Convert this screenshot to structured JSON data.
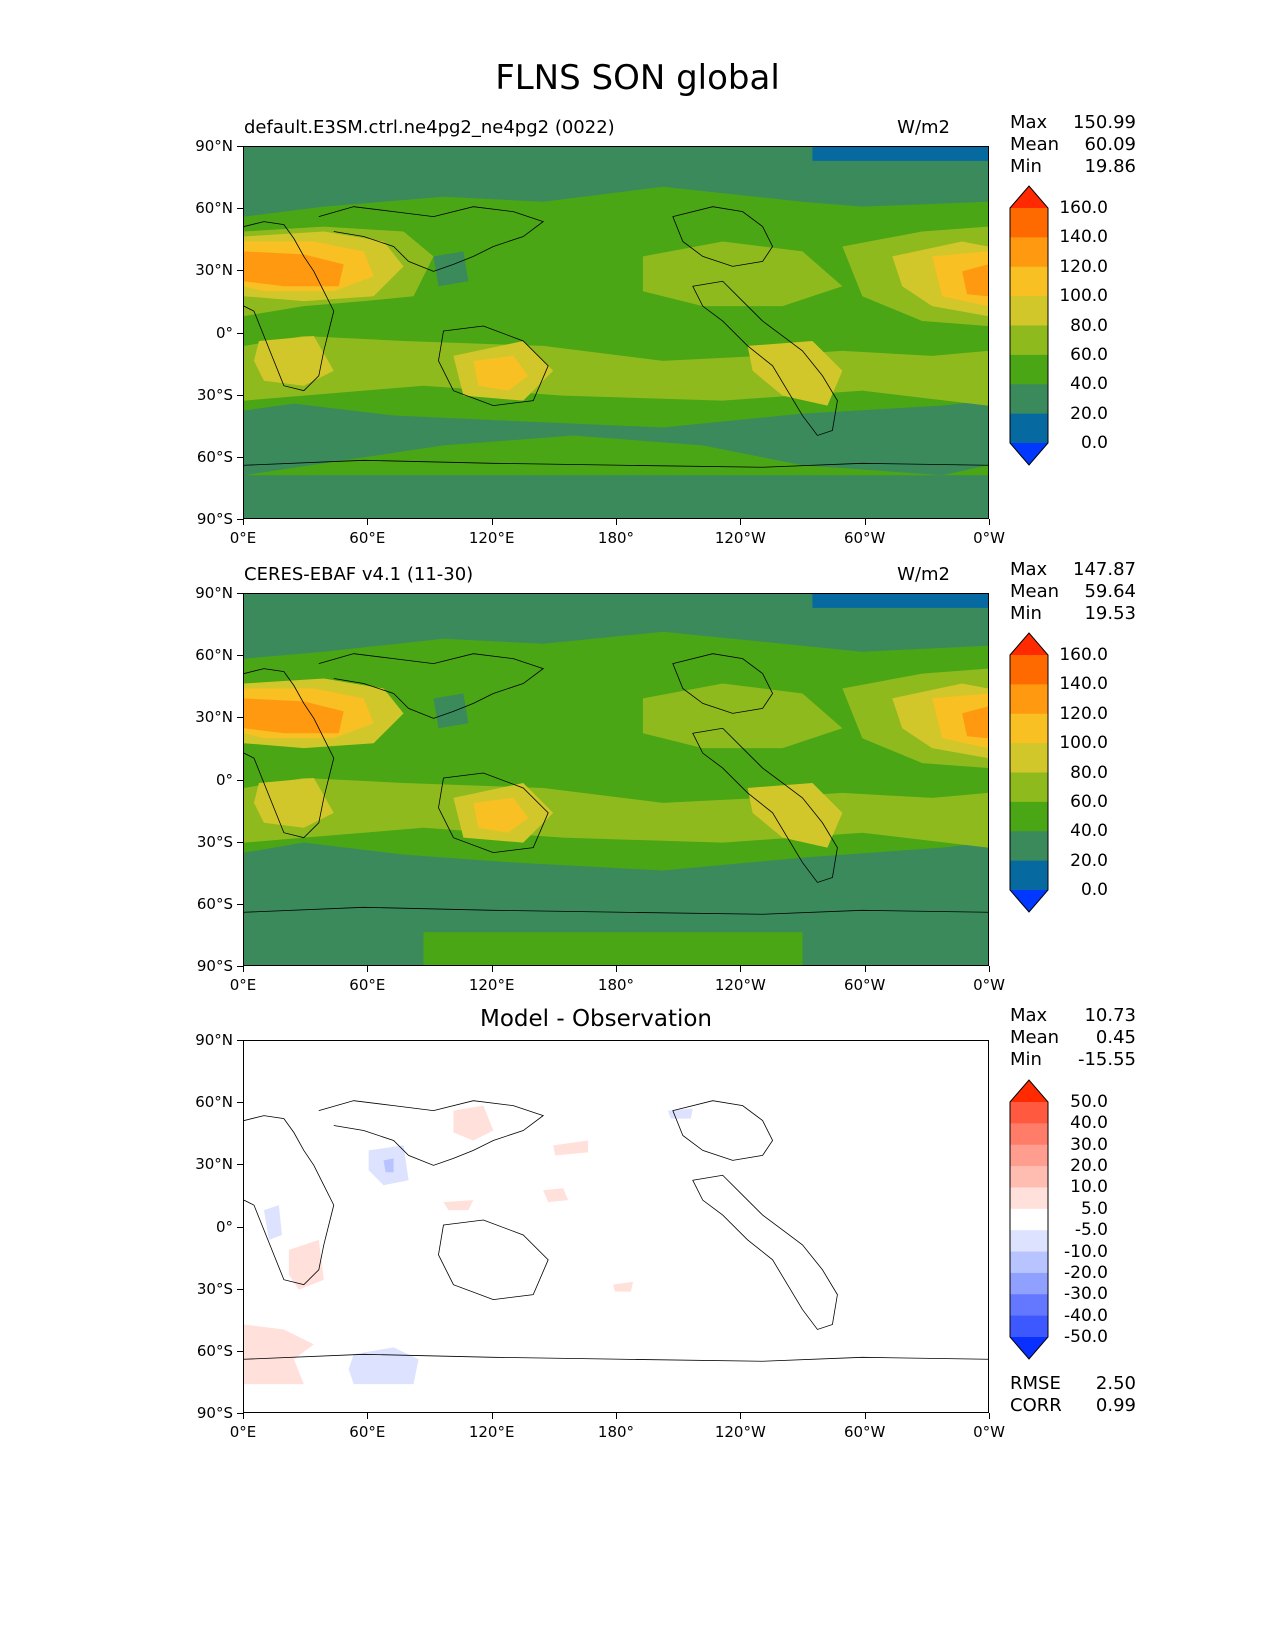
{
  "title": "FLNS SON global",
  "panels": [
    {
      "id": "model",
      "left_title": "default.E3SM.ctrl.ne4pg2_ne4pg2 (0022)",
      "right_title": "W/m2",
      "stats": [
        {
          "label": "Max",
          "value": "150.99"
        },
        {
          "label": "Mean",
          "value": "60.09"
        },
        {
          "label": "Min",
          "value": "19.86"
        }
      ]
    },
    {
      "id": "obs",
      "left_title": "CERES-EBAF v4.1 (11-30)",
      "right_title": "W/m2",
      "stats": [
        {
          "label": "Max",
          "value": "147.87"
        },
        {
          "label": "Mean",
          "value": "59.64"
        },
        {
          "label": "Min",
          "value": "19.53"
        }
      ]
    },
    {
      "id": "diff",
      "center_title": "Model - Observation",
      "stats": [
        {
          "label": "Max",
          "value": "10.73"
        },
        {
          "label": "Mean",
          "value": "0.45"
        },
        {
          "label": "Min",
          "value": "-15.55"
        }
      ],
      "metrics": [
        {
          "label": "RMSE",
          "value": "2.50"
        },
        {
          "label": "CORR",
          "value": "0.99"
        }
      ]
    }
  ],
  "axes": {
    "y_ticks": [
      "90°N",
      "60°N",
      "30°N",
      "0°",
      "30°S",
      "60°S",
      "90°S"
    ],
    "x_ticks": [
      "0°E",
      "60°E",
      "120°E",
      "180°",
      "120°W",
      "60°W",
      "0°W"
    ]
  },
  "colorbar_main": {
    "labels": [
      "160.0",
      "140.0",
      "120.0",
      "100.0",
      "80.0",
      "60.0",
      "40.0",
      "20.0",
      "0.0"
    ],
    "colors": [
      "#ff2a00",
      "#ff6a00",
      "#ff9a10",
      "#f8c022",
      "#d2c72a",
      "#8fba1e",
      "#4aa615",
      "#3a8a5c",
      "#066aa0",
      "#0038ff"
    ]
  },
  "colorbar_diff": {
    "labels": [
      "50.0",
      "40.0",
      "30.0",
      "20.0",
      "10.0",
      "5.0",
      "-5.0",
      "-10.0",
      "-20.0",
      "-30.0",
      "-40.0",
      "-50.0"
    ],
    "colors": [
      "#ff2a00",
      "#ff5a40",
      "#ff7c68",
      "#ff9d8e",
      "#ffbcb0",
      "#ffe0da",
      "#ffffff",
      "#dde2ff",
      "#b8c4ff",
      "#8fa0ff",
      "#6478ff",
      "#3d58ff",
      "#0a30ff"
    ]
  },
  "chart_data": {
    "type": "heatmap",
    "maps": [
      {
        "panel": "model",
        "units": "W/m2",
        "max": 150.99,
        "mean": 60.09,
        "min": 19.86
      },
      {
        "panel": "obs",
        "units": "W/m2",
        "max": 147.87,
        "mean": 59.64,
        "min": 19.53
      },
      {
        "panel": "diff",
        "max": 10.73,
        "mean": 0.45,
        "min": -15.55,
        "rmse": 2.5,
        "corr": 0.99
      }
    ],
    "levels_main": [
      0,
      20,
      40,
      60,
      80,
      100,
      120,
      140,
      160
    ],
    "levels_diff": [
      -50,
      -40,
      -30,
      -20,
      -10,
      -5,
      5,
      10,
      20,
      30,
      40,
      50
    ],
    "xlim": [
      0,
      360
    ],
    "ylim": [
      -90,
      90
    ]
  }
}
